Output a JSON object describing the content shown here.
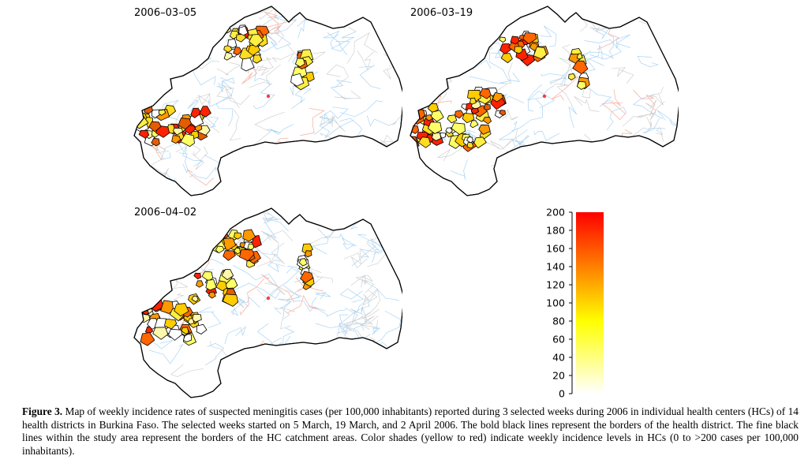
{
  "maps": [
    {
      "label": "2006–03–05"
    },
    {
      "label": "2006–03–19"
    },
    {
      "label": "2006–04–02"
    }
  ],
  "legend": {
    "ticks": [
      "200",
      "180",
      "160",
      "140",
      "120",
      "100",
      "80",
      "60",
      "40",
      "20",
      "0"
    ],
    "min": 0,
    "max": 200,
    "colors": {
      "low": "#ffffff",
      "mid": "#ffff00",
      "high": "#ff0000"
    }
  },
  "caption": {
    "label": "Figure 3.",
    "text": "Map of weekly incidence rates of suspected meningitis cases (per 100,000 inhabitants) reported during 3 selected weeks during 2006 in individual health centers (HCs) of 14 health districts in Burkina Faso. The selected weeks started on 5 March, 19 March, and 2 April 2006. The bold black lines represent the borders of the health district. The fine black lines within the study area represent the borders of the HC catchment areas. Color shades (yellow to red) indicate weekly incidence levels in HCs (0 to >200 cases per 100,000 inhabitants)."
  }
}
